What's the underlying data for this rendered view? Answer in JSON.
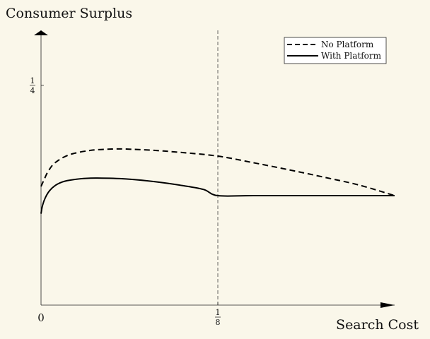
{
  "chart_data": {
    "type": "line",
    "xlabel": "Search Cost",
    "ylabel": "Consumer Surplus",
    "xlim": [
      0,
      0.25
    ],
    "ylim": [
      0,
      0.3125
    ],
    "x_ticks": [
      {
        "value": 0,
        "label": "0"
      },
      {
        "value": 0.125,
        "num": "1",
        "den": "8"
      }
    ],
    "y_ticks": [
      {
        "value": 0.25,
        "num": "1",
        "den": "4"
      }
    ],
    "reference_line": {
      "x": 0.125,
      "style": "dashed",
      "color": "#555555"
    },
    "legend": {
      "position": "top-right"
    },
    "series": [
      {
        "name": "No Platform",
        "style": "dashed",
        "x": [
          0,
          0.002,
          0.005,
          0.01,
          0.02,
          0.035,
          0.05,
          0.06,
          0.08,
          0.1,
          0.125,
          0.15,
          0.175,
          0.2,
          0.225,
          0.25
        ],
        "y": [
          0.135,
          0.142,
          0.152,
          0.162,
          0.171,
          0.176,
          0.1775,
          0.1775,
          0.176,
          0.1735,
          0.1695,
          0.162,
          0.154,
          0.1455,
          0.1365,
          0.1245
        ]
      },
      {
        "name": "With Platform",
        "style": "solid",
        "x": [
          0,
          0.001,
          0.003,
          0.006,
          0.01,
          0.015,
          0.02,
          0.03,
          0.04,
          0.06,
          0.08,
          0.1,
          0.115,
          0.125,
          0.15,
          0.2,
          0.25
        ],
        "y": [
          0.104,
          0.113,
          0.122,
          0.13,
          0.136,
          0.14,
          0.142,
          0.144,
          0.1445,
          0.1435,
          0.1405,
          0.136,
          0.1315,
          0.1245,
          0.1245,
          0.1245,
          0.1245
        ]
      }
    ]
  },
  "colors": {
    "background": "#faf7ea",
    "ink": "#111111",
    "reference": "#555555"
  }
}
